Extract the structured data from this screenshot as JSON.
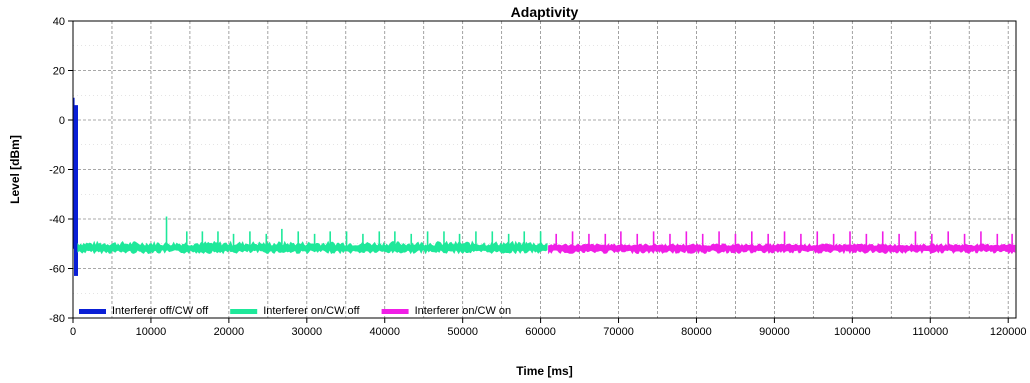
{
  "chart_data": {
    "type": "line",
    "title": "Adaptivity",
    "xlabel": "Time [ms]",
    "ylabel": "Level [dBm]",
    "xlim": [
      0,
      121000
    ],
    "ylim": [
      -80,
      40
    ],
    "x_ticks": [
      0,
      10000,
      20000,
      30000,
      40000,
      50000,
      60000,
      70000,
      80000,
      90000,
      100000,
      110000,
      120000
    ],
    "y_ticks": [
      -80,
      -60,
      -40,
      -20,
      0,
      20,
      40
    ],
    "grid": true,
    "legend_position": "bottom-left",
    "series": [
      {
        "name": "Interferer off/CW off",
        "color": "#0a1fd6",
        "x_range": [
          0,
          600
        ],
        "baseline": -52,
        "min": -63,
        "max": 6,
        "peaks": [
          {
            "x": 100,
            "y": 9
          }
        ]
      },
      {
        "name": "Interferer on/CW off",
        "color": "#1ee89a",
        "x_range": [
          600,
          61000
        ],
        "baseline": -52,
        "min": -54,
        "max": -49,
        "peaks": [
          {
            "x": 12000,
            "y": -39
          },
          {
            "x": 14600,
            "y": -45
          },
          {
            "x": 16600,
            "y": -45
          },
          {
            "x": 18600,
            "y": -45
          },
          {
            "x": 20600,
            "y": -46
          },
          {
            "x": 22700,
            "y": -45
          },
          {
            "x": 24800,
            "y": -46
          },
          {
            "x": 26800,
            "y": -44
          },
          {
            "x": 28900,
            "y": -45
          },
          {
            "x": 31000,
            "y": -46
          },
          {
            "x": 33000,
            "y": -45
          },
          {
            "x": 35100,
            "y": -45
          },
          {
            "x": 37200,
            "y": -46
          },
          {
            "x": 39300,
            "y": -45
          },
          {
            "x": 41300,
            "y": -45
          },
          {
            "x": 43400,
            "y": -46
          },
          {
            "x": 45500,
            "y": -45
          },
          {
            "x": 47600,
            "y": -45
          },
          {
            "x": 49600,
            "y": -46
          },
          {
            "x": 51700,
            "y": -45
          },
          {
            "x": 53800,
            "y": -45
          },
          {
            "x": 55900,
            "y": -46
          },
          {
            "x": 57900,
            "y": -45
          },
          {
            "x": 60000,
            "y": -45
          }
        ]
      },
      {
        "name": "Interferer on/CW on",
        "color": "#f01ee6",
        "x_range": [
          61000,
          121000
        ],
        "baseline": -52,
        "min": -54,
        "max": -50,
        "peaks": [
          {
            "x": 62000,
            "y": -46
          },
          {
            "x": 64100,
            "y": -45
          },
          {
            "x": 66200,
            "y": -46
          },
          {
            "x": 68300,
            "y": -46
          },
          {
            "x": 70300,
            "y": -45
          },
          {
            "x": 72400,
            "y": -46
          },
          {
            "x": 74500,
            "y": -45
          },
          {
            "x": 76600,
            "y": -46
          },
          {
            "x": 78700,
            "y": -45
          },
          {
            "x": 80800,
            "y": -46
          },
          {
            "x": 82900,
            "y": -45
          },
          {
            "x": 85000,
            "y": -46
          },
          {
            "x": 87100,
            "y": -45
          },
          {
            "x": 89200,
            "y": -46
          },
          {
            "x": 91300,
            "y": -45
          },
          {
            "x": 93400,
            "y": -46
          },
          {
            "x": 95500,
            "y": -45
          },
          {
            "x": 97600,
            "y": -46
          },
          {
            "x": 99700,
            "y": -45
          },
          {
            "x": 101800,
            "y": -46
          },
          {
            "x": 103900,
            "y": -45
          },
          {
            "x": 106000,
            "y": -46
          },
          {
            "x": 108100,
            "y": -45
          },
          {
            "x": 110200,
            "y": -46
          },
          {
            "x": 112300,
            "y": -45
          },
          {
            "x": 114400,
            "y": -46
          },
          {
            "x": 116500,
            "y": -45
          },
          {
            "x": 118600,
            "y": -46
          },
          {
            "x": 120500,
            "y": -46
          }
        ]
      }
    ]
  }
}
